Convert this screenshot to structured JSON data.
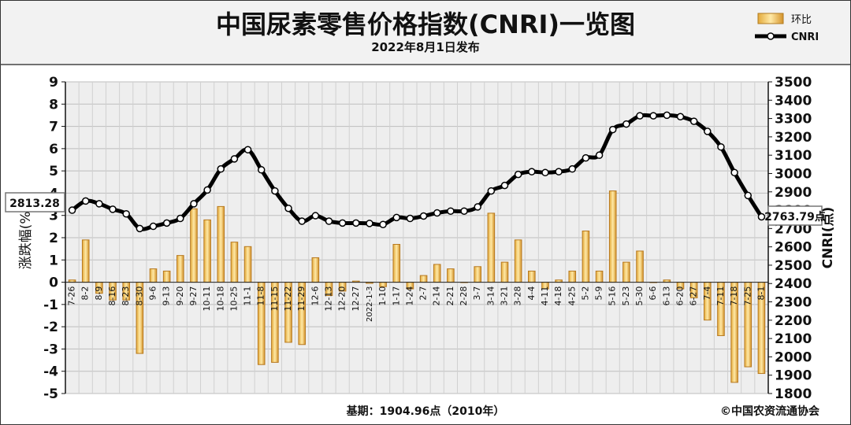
{
  "chart_data": {
    "type": "bar+line",
    "title": "中国尿素零售价格指数(CNRI)一览图",
    "subtitle": "2022年8月1日发布",
    "legend": [
      {
        "name": "环比",
        "kind": "bar"
      },
      {
        "name": "CNRI",
        "kind": "line"
      }
    ],
    "legend_position": "top-right",
    "ylabel_left": "涨跌幅(%)",
    "ylabel_right": "CNRI(点)",
    "ylim_left": [
      -5,
      9
    ],
    "ylim_right": [
      1800,
      3500
    ],
    "yticks_left": [
      "9",
      "8",
      "7",
      "6",
      "5",
      "4",
      "3",
      "2",
      "1",
      "0",
      "-1",
      "-2",
      "-3",
      "-4",
      "-5"
    ],
    "yticks_right": [
      "3500",
      "3400",
      "3300",
      "3200",
      "3100",
      "3000",
      "2900",
      "2800",
      "2700",
      "2600",
      "2500",
      "2400",
      "2300",
      "2200",
      "2100",
      "2000",
      "1900",
      "1800"
    ],
    "grid": true,
    "categories": [
      "7-26",
      "8-2",
      "8-9",
      "8-16",
      "8-23",
      "8-30",
      "9-6",
      "9-13",
      "9-20",
      "9-27",
      "10-11",
      "10-18",
      "10-25",
      "11-1",
      "11-8",
      "11-15",
      "11-22",
      "11-29",
      "12-6",
      "12-13",
      "12-20",
      "12-27",
      "2022-1-3",
      "1-10",
      "1-17",
      "1-24",
      "2-7",
      "2-14",
      "2-21",
      "2-28",
      "3-7",
      "3-14",
      "3-21",
      "3-28",
      "4-4",
      "4-11",
      "4-18",
      "4-25",
      "5-2",
      "5-9",
      "5-16",
      "5-23",
      "5-30",
      "6-6",
      "6-13",
      "6-20",
      "6-27",
      "7-4",
      "7-11",
      "7-18",
      "7-25",
      "8-1"
    ],
    "series": [
      {
        "name": "环比",
        "kind": "bar",
        "values": [
          0.1,
          1.9,
          -0.5,
          -0.8,
          -0.8,
          -3.2,
          0.6,
          0.5,
          1.2,
          3.3,
          2.8,
          3.4,
          1.8,
          1.6,
          -3.7,
          -3.6,
          -2.7,
          -2.8,
          1.1,
          -0.6,
          -0.4,
          0.05,
          -0.05,
          -0.2,
          1.7,
          -0.3,
          0.3,
          0.8,
          0.6,
          0.0,
          0.7,
          3.1,
          0.9,
          1.9,
          0.5,
          -0.3,
          0.1,
          0.5,
          2.3,
          0.5,
          4.1,
          0.9,
          1.4,
          0.0,
          0.1,
          -0.3,
          -0.7,
          -1.7,
          -2.4,
          -4.5,
          -3.8,
          -4.1
        ]
      },
      {
        "name": "CNRI",
        "kind": "line",
        "values": [
          2800,
          2850,
          2835,
          2805,
          2780,
          2700,
          2712,
          2730,
          2755,
          2835,
          2910,
          3025,
          3080,
          3130,
          3020,
          2905,
          2810,
          2740,
          2770,
          2740,
          2730,
          2730,
          2728,
          2722,
          2760,
          2755,
          2768,
          2785,
          2795,
          2795,
          2818,
          2905,
          2935,
          2995,
          3010,
          3005,
          3010,
          3025,
          3085,
          3100,
          3240,
          3270,
          3315,
          3315,
          3318,
          3310,
          3285,
          3230,
          3145,
          3005,
          2880,
          2763.79
        ]
      }
    ],
    "annotations": [
      "2813.28",
      "2763.79点"
    ],
    "footer_base": "基期：1904.96点（2010年）",
    "footer_copyright": "©中国农资流通协会"
  }
}
